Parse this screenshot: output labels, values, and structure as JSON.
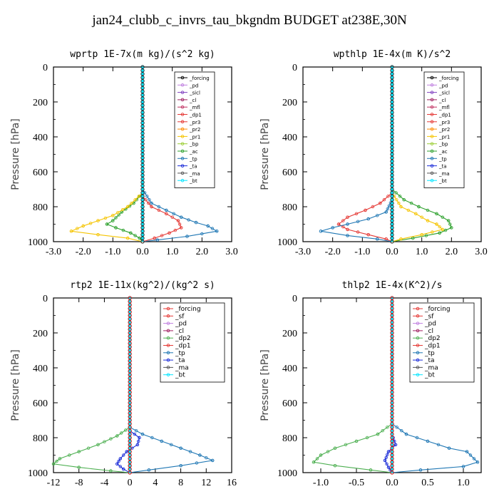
{
  "main_title": "jan24_clubb_c_invrs_tau_bkgndm  BUDGET at238E,30N",
  "chart_data": [
    {
      "type": "line",
      "title": "wprtp   1E-7x(m kg)/(s^2 kg)",
      "ylabel": "Pressure  [hPa]",
      "xlim": [
        -3.0,
        3.0
      ],
      "ylim": [
        1000,
        0
      ],
      "xticks": [
        "-3.0",
        "-2.0",
        "-1.0",
        "0.0",
        "1.0",
        "2.0",
        "3.0"
      ],
      "yticks": [
        "0",
        "200",
        "400",
        "600",
        "800",
        "1000"
      ],
      "legend": {
        "placement": "top-right",
        "entries": [
          "_forcing",
          "_pd",
          "_sicl",
          "_cl",
          "_mfl",
          "_dp1",
          "_pr3",
          "_pr2",
          "_pr1",
          "_bp",
          "_ac",
          "_tp",
          "_ta",
          "_ma",
          "_bt"
        ]
      },
      "series": [
        {
          "name": "_tp",
          "color": "#1f77b4",
          "x": [
            0,
            0,
            0.3,
            0.8,
            1.3,
            1.8,
            2.2,
            2.5,
            1.5,
            0.5,
            0
          ],
          "y": [
            0,
            700,
            780,
            820,
            860,
            890,
            910,
            940,
            970,
            990,
            1000
          ]
        },
        {
          "name": "_ac",
          "color": "#2ca02c",
          "x": [
            0,
            0,
            -0.3,
            -0.7,
            -1.0,
            -1.2,
            -0.9,
            -0.4,
            -0.1,
            0
          ],
          "y": [
            0,
            720,
            780,
            830,
            880,
            900,
            920,
            950,
            980,
            1000
          ]
        },
        {
          "name": "_pr1",
          "color": "#f5c400",
          "x": [
            0,
            0,
            -0.5,
            -1.0,
            -1.5,
            -2.0,
            -2.4,
            -1.5,
            -0.5,
            0
          ],
          "y": [
            0,
            720,
            800,
            850,
            880,
            910,
            940,
            960,
            980,
            1000
          ]
        },
        {
          "name": "_dp1",
          "color": "#e53935",
          "x": [
            0,
            0,
            0.3,
            0.8,
            1.2,
            1.3,
            0.9,
            0.4,
            0
          ],
          "y": [
            0,
            740,
            800,
            840,
            880,
            920,
            950,
            980,
            1000
          ]
        },
        {
          "name": "_forcing",
          "color": "#000000",
          "x": [
            0,
            0
          ],
          "y": [
            0,
            1000
          ]
        },
        {
          "name": "_bt",
          "color": "#00e5ff",
          "x": [
            0,
            0
          ],
          "y": [
            0,
            1000
          ]
        }
      ]
    },
    {
      "type": "line",
      "title": "wpthlp   1E-4x(m K)/s^2",
      "ylabel": "Pressure  [hPa]",
      "xlim": [
        -3.0,
        3.0
      ],
      "ylim": [
        1000,
        0
      ],
      "xticks": [
        "-3.0",
        "-2.0",
        "-1.0",
        "0.0",
        "1.0",
        "2.0",
        "3.0"
      ],
      "yticks": [
        "0",
        "200",
        "400",
        "600",
        "800",
        "1000"
      ],
      "legend": {
        "placement": "top-right",
        "entries": [
          "_forcing",
          "_pd",
          "_sicl",
          "_cl",
          "_mfl",
          "_dp1",
          "_pr3",
          "_pr2",
          "_pr1",
          "_bp",
          "_ac",
          "_tp",
          "_ta",
          "_ma",
          "_bt"
        ]
      },
      "series": [
        {
          "name": "_ac",
          "color": "#2ca02c",
          "x": [
            0,
            0,
            0.4,
            0.9,
            1.5,
            1.9,
            2.0,
            1.6,
            0.7,
            0
          ],
          "y": [
            0,
            700,
            760,
            800,
            840,
            880,
            920,
            950,
            980,
            1000
          ]
        },
        {
          "name": "_pr1",
          "color": "#f5c400",
          "x": [
            0,
            0,
            0.3,
            0.8,
            1.2,
            1.5,
            1.7,
            1.0,
            0.3,
            0
          ],
          "y": [
            0,
            720,
            800,
            840,
            880,
            900,
            930,
            960,
            985,
            1000
          ]
        },
        {
          "name": "_dp1",
          "color": "#e53935",
          "x": [
            0,
            0,
            -0.4,
            -0.9,
            -1.5,
            -1.8,
            -1.5,
            -0.8,
            -0.2,
            0
          ],
          "y": [
            0,
            720,
            780,
            820,
            860,
            900,
            930,
            960,
            985,
            1000
          ]
        },
        {
          "name": "_tp",
          "color": "#1f77b4",
          "x": [
            0,
            0,
            -0.2,
            -0.8,
            -1.5,
            -2.0,
            -2.4,
            -1.5,
            -0.5,
            0
          ],
          "y": [
            0,
            760,
            830,
            870,
            900,
            920,
            940,
            965,
            985,
            1000
          ]
        },
        {
          "name": "_forcing",
          "color": "#000000",
          "x": [
            0,
            0
          ],
          "y": [
            0,
            1000
          ]
        },
        {
          "name": "_bt",
          "color": "#00e5ff",
          "x": [
            0,
            0
          ],
          "y": [
            0,
            1000
          ]
        }
      ]
    },
    {
      "type": "line",
      "title": "rtp2   1E-11x(kg^2)/(kg^2 s)",
      "ylabel": "Pressure  [hPa]",
      "xlim": [
        -12,
        16
      ],
      "ylim": [
        1000,
        0
      ],
      "xticks": [
        "-12",
        "-8",
        "-4",
        "0",
        "4",
        "8",
        "12",
        "16"
      ],
      "yticks": [
        "0",
        "200",
        "400",
        "600",
        "800",
        "1000"
      ],
      "legend": {
        "placement": "top-right",
        "entries": [
          "_forcing",
          "_sf",
          "_pd",
          "_cl",
          "_dp2",
          "_dp1",
          "_tp",
          "_ta",
          "_ma",
          "_bt"
        ]
      },
      "series": [
        {
          "name": "_tp",
          "color": "#1f77b4",
          "x": [
            0,
            0,
            2,
            5,
            8,
            11,
            13,
            8,
            3,
            0
          ],
          "y": [
            0,
            740,
            780,
            820,
            860,
            900,
            930,
            960,
            985,
            1000
          ]
        },
        {
          "name": "_dp1",
          "color": "#4caf50",
          "x": [
            0,
            0,
            -2,
            -5,
            -8,
            -11,
            -12,
            -8,
            -3,
            0
          ],
          "y": [
            0,
            740,
            790,
            840,
            880,
            920,
            950,
            970,
            990,
            1000
          ]
        },
        {
          "name": "_ta",
          "color": "#1a2bd8",
          "x": [
            0,
            0,
            1.5,
            1.2,
            -0.5,
            -1.5,
            -2,
            -1,
            0
          ],
          "y": [
            0,
            760,
            800,
            840,
            880,
            920,
            950,
            980,
            1000
          ]
        },
        {
          "name": "_forcing",
          "color": "#e53935",
          "x": [
            0,
            0
          ],
          "y": [
            0,
            1000
          ]
        },
        {
          "name": "_bt",
          "color": "#00e5ff",
          "x": [
            0,
            0
          ],
          "y": [
            0,
            1000
          ]
        }
      ]
    },
    {
      "type": "line",
      "title": "thlp2   1E-4x(K^2)/s",
      "ylabel": "Pressure  [hPa]",
      "xlim": [
        -1.25,
        1.25
      ],
      "ylim": [
        1000,
        0
      ],
      "xticks": [
        "-1.0",
        "-0.5",
        "0.0",
        "0.5",
        "1.0"
      ],
      "yticks": [
        "0",
        "200",
        "400",
        "600",
        "800",
        "1000"
      ],
      "legend": {
        "placement": "top-right",
        "entries": [
          "_forcing",
          "_sf",
          "_pd",
          "_cl",
          "_dp2",
          "_dp1",
          "_tp",
          "_ta",
          "_ma",
          "_bt"
        ]
      },
      "series": [
        {
          "name": "_tp",
          "color": "#1f77b4",
          "x": [
            0,
            0,
            0.2,
            0.5,
            0.8,
            1.05,
            1.2,
            1.0,
            0.4,
            0
          ],
          "y": [
            0,
            720,
            780,
            820,
            860,
            880,
            940,
            965,
            985,
            1000
          ]
        },
        {
          "name": "_dp1",
          "color": "#4caf50",
          "x": [
            0,
            0,
            -0.2,
            -0.5,
            -0.8,
            -1.0,
            -1.1,
            -0.8,
            -0.3,
            0
          ],
          "y": [
            0,
            720,
            780,
            820,
            860,
            900,
            940,
            960,
            985,
            1000
          ]
        },
        {
          "name": "_ta",
          "color": "#1a2bd8",
          "x": [
            0,
            0,
            0.05,
            -0.05,
            -0.1,
            -0.05,
            0
          ],
          "y": [
            0,
            780,
            840,
            880,
            930,
            970,
            1000
          ]
        },
        {
          "name": "_forcing",
          "color": "#e53935",
          "x": [
            0,
            0
          ],
          "y": [
            0,
            1000
          ]
        },
        {
          "name": "_bt",
          "color": "#00e5ff",
          "x": [
            0,
            0
          ],
          "y": [
            0,
            1000
          ]
        }
      ]
    }
  ]
}
